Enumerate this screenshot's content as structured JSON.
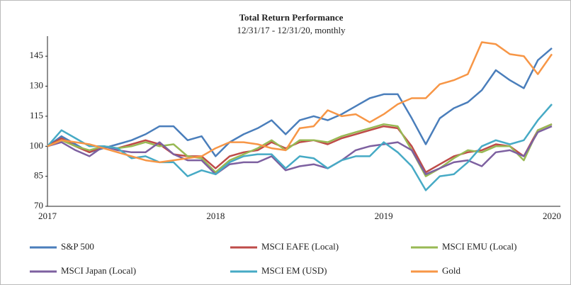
{
  "chart_data": {
    "type": "line",
    "title": "Total Return Performance",
    "subtitle": "12/31/17 - 12/31/20, monthly",
    "categories": [
      "2017",
      null,
      null,
      null,
      null,
      null,
      null,
      null,
      null,
      null,
      null,
      null,
      "2018",
      null,
      null,
      null,
      null,
      null,
      null,
      null,
      null,
      null,
      null,
      null,
      "2019",
      null,
      null,
      null,
      null,
      null,
      null,
      null,
      null,
      null,
      null,
      null,
      "2020"
    ],
    "ylim": [
      70,
      155
    ],
    "yticks": [
      70,
      85,
      100,
      115,
      130,
      145
    ],
    "series": [
      {
        "name": "S&P 500",
        "color": "#4a7ebb",
        "values": [
          100,
          105,
          101,
          97,
          99,
          101,
          103,
          106,
          110,
          110,
          103,
          105,
          95,
          102,
          106,
          109,
          113,
          106,
          113,
          115,
          113,
          116,
          120,
          124,
          126,
          126,
          114,
          101,
          114,
          119,
          122,
          128,
          138,
          133,
          129,
          143,
          149
        ]
      },
      {
        "name": "MSCI EAFE (Local)",
        "color": "#be4b48",
        "values": [
          100,
          104,
          100,
          97,
          100,
          99,
          101,
          103,
          101,
          96,
          95,
          95,
          89,
          95,
          97,
          98,
          102,
          99,
          102,
          103,
          101,
          104,
          106,
          108,
          110,
          109,
          100,
          87,
          91,
          95,
          97,
          98,
          101,
          100,
          95,
          108,
          111
        ]
      },
      {
        "name": "MSCI EMU (Local)",
        "color": "#98b954",
        "values": [
          100,
          103,
          100,
          98,
          100,
          99,
          100,
          102,
          100,
          101,
          95,
          94,
          87,
          93,
          96,
          99,
          103,
          98,
          103,
          103,
          102,
          105,
          107,
          109,
          111,
          110,
          98,
          85,
          89,
          94,
          98,
          97,
          100,
          100,
          93,
          108,
          111
        ]
      },
      {
        "name": "MSCI Japan (Local)",
        "color": "#7d60a0",
        "values": [
          100,
          102,
          98,
          95,
          100,
          98,
          97,
          97,
          102,
          96,
          93,
          93,
          86,
          91,
          92,
          92,
          95,
          88,
          90,
          91,
          89,
          93,
          98,
          100,
          101,
          102,
          98,
          86,
          89,
          92,
          93,
          90,
          97,
          98,
          95,
          107,
          110
        ]
      },
      {
        "name": "MSCI EM (USD)",
        "color": "#46aac5",
        "values": [
          100,
          108,
          104,
          100,
          100,
          99,
          94,
          95,
          92,
          92,
          85,
          88,
          86,
          92,
          95,
          96,
          96,
          89,
          95,
          94,
          89,
          93,
          95,
          95,
          102,
          97,
          90,
          78,
          85,
          86,
          92,
          100,
          103,
          101,
          103,
          113,
          121
        ]
      },
      {
        "name": "Gold",
        "color": "#f79646",
        "values": [
          100,
          103,
          102,
          101,
          99,
          97,
          95,
          93,
          92,
          93,
          94,
          95,
          99,
          102,
          102,
          101,
          99,
          98,
          109,
          110,
          118,
          115,
          116,
          112,
          116,
          121,
          124,
          124,
          131,
          133,
          136,
          152,
          151,
          146,
          145,
          136,
          146
        ]
      }
    ]
  }
}
